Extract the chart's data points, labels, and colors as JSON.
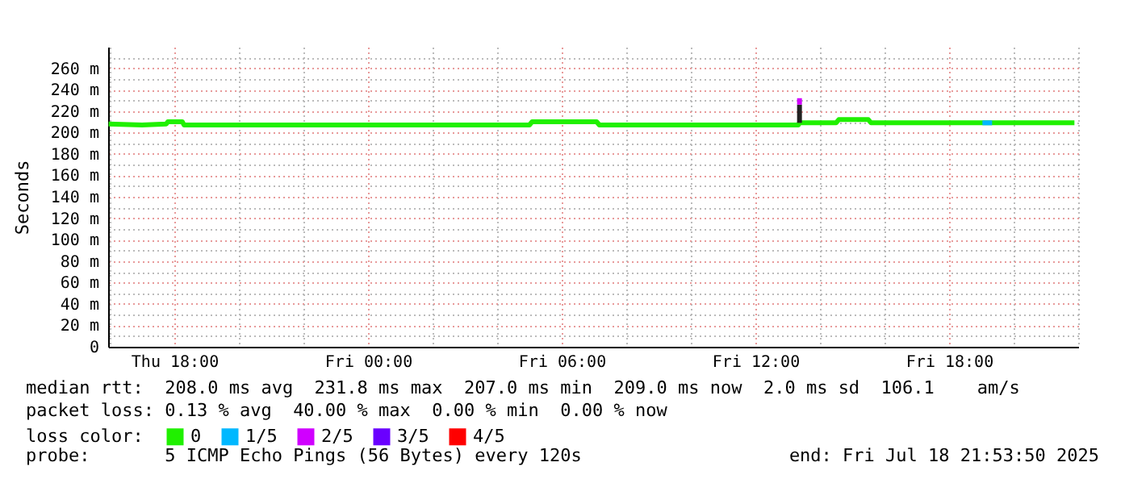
{
  "chart_data": {
    "type": "line",
    "ylabel": "Seconds",
    "legend_title": "loss color:",
    "legend": "bottom",
    "grid": true,
    "annotations": [
      "median rtt:  208.0 ms avg  231.8 ms max  207.0 ms min  209.0 ms now  2.0 ms sd  106.1    am/s",
      "packet loss: 0.13 % avg  40.00 % max  0.00 % min  0.00 % now",
      "probe:       5 ICMP Echo Pings (56 Bytes) every 120s",
      "end: Fri Jul 18 21:53:50 2025"
    ],
    "xlim": [
      "2025-07-17T15:57",
      "2025-07-18T22:00"
    ],
    "xticks": [
      {
        "value": "2025-07-17T16:00",
        "label": null
      },
      {
        "value": "2025-07-17T18:00",
        "label": "Thu 18:00"
      },
      {
        "value": "2025-07-17T20:00",
        "label": null
      },
      {
        "value": "2025-07-17T22:00",
        "label": null
      },
      {
        "value": "2025-07-18T00:00",
        "label": "Fri 00:00"
      },
      {
        "value": "2025-07-18T02:00",
        "label": null
      },
      {
        "value": "2025-07-18T04:00",
        "label": null
      },
      {
        "value": "2025-07-18T06:00",
        "label": "Fri 06:00"
      },
      {
        "value": "2025-07-18T08:00",
        "label": null
      },
      {
        "value": "2025-07-18T10:00",
        "label": null
      },
      {
        "value": "2025-07-18T12:00",
        "label": "Fri 12:00"
      },
      {
        "value": "2025-07-18T14:00",
        "label": null
      },
      {
        "value": "2025-07-18T16:00",
        "label": null
      },
      {
        "value": "2025-07-18T18:00",
        "label": "Fri 18:00"
      },
      {
        "value": "2025-07-18T20:00",
        "label": null
      },
      {
        "value": "2025-07-18T22:00",
        "label": null
      }
    ],
    "ylim": [
      0,
      280
    ],
    "yticks": [
      {
        "value": 0,
        "label": "0"
      },
      {
        "value": 10,
        "label": null
      },
      {
        "value": 20,
        "label": "20 m"
      },
      {
        "value": 30,
        "label": null
      },
      {
        "value": 40,
        "label": "40 m"
      },
      {
        "value": 50,
        "label": null
      },
      {
        "value": 60,
        "label": "60 m"
      },
      {
        "value": 70,
        "label": null
      },
      {
        "value": 80,
        "label": "80 m"
      },
      {
        "value": 90,
        "label": null
      },
      {
        "value": 100,
        "label": "100 m"
      },
      {
        "value": 110,
        "label": null
      },
      {
        "value": 120,
        "label": "120 m"
      },
      {
        "value": 130,
        "label": null
      },
      {
        "value": 140,
        "label": "140 m"
      },
      {
        "value": 150,
        "label": null
      },
      {
        "value": 160,
        "label": "160 m"
      },
      {
        "value": 170,
        "label": null
      },
      {
        "value": 180,
        "label": "180 m"
      },
      {
        "value": 190,
        "label": null
      },
      {
        "value": 200,
        "label": "200 m"
      },
      {
        "value": 210,
        "label": null
      },
      {
        "value": 220,
        "label": "220 m"
      },
      {
        "value": 230,
        "label": null
      },
      {
        "value": 240,
        "label": "240 m"
      },
      {
        "value": 250,
        "label": null
      },
      {
        "value": 260,
        "label": "260 m"
      },
      {
        "value": 270,
        "label": null
      }
    ],
    "series": [
      {
        "name": "0",
        "color": "#20f000",
        "x": [
          "2025-07-17T15:58",
          "2025-07-17T17:00",
          "2025-07-17T17:45",
          "2025-07-17T17:48",
          "2025-07-17T18:15",
          "2025-07-17T18:18",
          "2025-07-17T21:00",
          "2025-07-18T00:00",
          "2025-07-18T05:00",
          "2025-07-18T05:05",
          "2025-07-18T07:05",
          "2025-07-18T07:10",
          "2025-07-18T13:20",
          "2025-07-18T13:22",
          "2025-07-18T14:30",
          "2025-07-18T14:35",
          "2025-07-18T15:30",
          "2025-07-18T15:35",
          "2025-07-18T21:53"
        ],
        "values": [
          208,
          207,
          208,
          210,
          210,
          207,
          207,
          207,
          207,
          210,
          210,
          207,
          207,
          209,
          209,
          212,
          212,
          209,
          209
        ]
      },
      {
        "color": "#222222",
        "x": [
          "2025-07-18T13:22",
          "2025-07-18T13:22"
        ],
        "values": [
          209,
          226
        ]
      },
      {
        "name": "1/5",
        "color": "#00b8ff",
        "x": [
          "2025-07-18T19:02",
          "2025-07-18T19:20"
        ],
        "values": [
          209,
          209
        ]
      },
      {
        "name": "2/5",
        "color": "#d000ff",
        "x": [
          "2025-07-18T13:22",
          "2025-07-18T13:22"
        ],
        "values": [
          226,
          232
        ]
      },
      {
        "name": "3/5",
        "color": "#6a00ff"
      },
      {
        "name": "4/5",
        "color": "#ff0000"
      }
    ]
  }
}
